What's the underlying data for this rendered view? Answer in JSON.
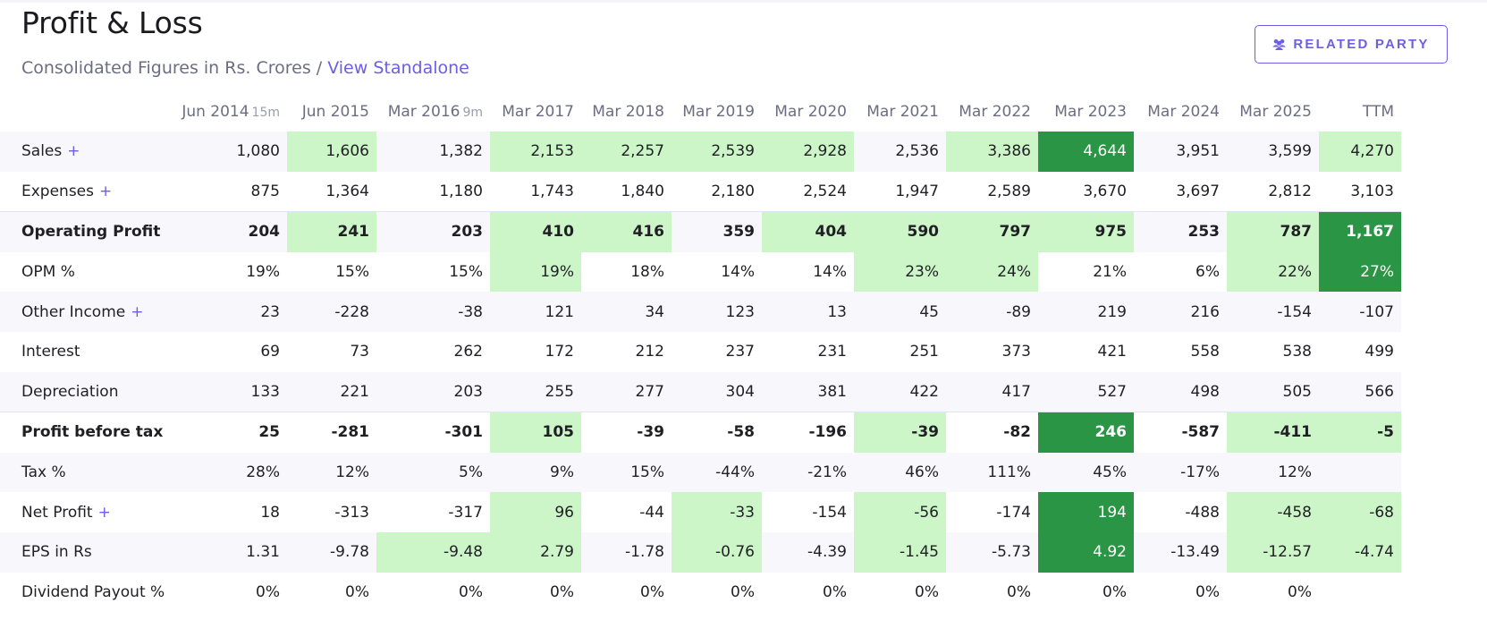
{
  "header": {
    "title": "Profit & Loss",
    "subtitle": "Consolidated Figures in Rs. Crores /",
    "view_link": "View Standalone",
    "related_party_label": "RELATED PARTY"
  },
  "columns": [
    {
      "label": "Jun 2014",
      "sub": "15m"
    },
    {
      "label": "Jun 2015",
      "sub": ""
    },
    {
      "label": "Mar 2016",
      "sub": "9m"
    },
    {
      "label": "Mar 2017",
      "sub": ""
    },
    {
      "label": "Mar 2018",
      "sub": ""
    },
    {
      "label": "Mar 2019",
      "sub": ""
    },
    {
      "label": "Mar 2020",
      "sub": ""
    },
    {
      "label": "Mar 2021",
      "sub": ""
    },
    {
      "label": "Mar 2022",
      "sub": ""
    },
    {
      "label": "Mar 2023",
      "sub": ""
    },
    {
      "label": "Mar 2024",
      "sub": ""
    },
    {
      "label": "Mar 2025",
      "sub": ""
    },
    {
      "label": "TTM",
      "sub": ""
    }
  ],
  "rows": [
    {
      "label": "Sales",
      "expandable": true,
      "bold": false,
      "alt": true,
      "sep": false,
      "values": [
        "1,080",
        "1,606",
        "1,382",
        "2,153",
        "2,257",
        "2,539",
        "2,928",
        "2,536",
        "3,386",
        "4,644",
        "3,951",
        "3,599",
        "4,270"
      ],
      "highlight": [
        "",
        "l",
        "",
        "l",
        "l",
        "l",
        "l",
        "",
        "l",
        "d",
        "",
        "",
        "l"
      ]
    },
    {
      "label": "Expenses",
      "expandable": true,
      "bold": false,
      "alt": false,
      "sep": false,
      "values": [
        "875",
        "1,364",
        "1,180",
        "1,743",
        "1,840",
        "2,180",
        "2,524",
        "1,947",
        "2,589",
        "3,670",
        "3,697",
        "2,812",
        "3,103"
      ],
      "highlight": [
        "",
        "",
        "",
        "",
        "",
        "",
        "",
        "",
        "",
        "",
        "",
        "",
        ""
      ]
    },
    {
      "label": "Operating Profit",
      "expandable": false,
      "bold": true,
      "alt": true,
      "sep": true,
      "values": [
        "204",
        "241",
        "203",
        "410",
        "416",
        "359",
        "404",
        "590",
        "797",
        "975",
        "253",
        "787",
        "1,167"
      ],
      "highlight": [
        "",
        "l",
        "",
        "l",
        "l",
        "",
        "l",
        "l",
        "l",
        "l",
        "",
        "l",
        "d"
      ]
    },
    {
      "label": "OPM %",
      "expandable": false,
      "bold": false,
      "alt": false,
      "sep": false,
      "values": [
        "19%",
        "15%",
        "15%",
        "19%",
        "18%",
        "14%",
        "14%",
        "23%",
        "24%",
        "21%",
        "6%",
        "22%",
        "27%"
      ],
      "highlight": [
        "",
        "",
        "",
        "l",
        "",
        "",
        "",
        "l",
        "l",
        "",
        "",
        "l",
        "d"
      ]
    },
    {
      "label": "Other Income",
      "expandable": true,
      "bold": false,
      "alt": true,
      "sep": false,
      "values": [
        "23",
        "-228",
        "-38",
        "121",
        "34",
        "123",
        "13",
        "45",
        "-89",
        "219",
        "216",
        "-154",
        "-107"
      ],
      "highlight": [
        "",
        "",
        "",
        "",
        "",
        "",
        "",
        "",
        "",
        "",
        "",
        "",
        ""
      ]
    },
    {
      "label": "Interest",
      "expandable": false,
      "bold": false,
      "alt": false,
      "sep": false,
      "values": [
        "69",
        "73",
        "262",
        "172",
        "212",
        "237",
        "231",
        "251",
        "373",
        "421",
        "558",
        "538",
        "499"
      ],
      "highlight": [
        "",
        "",
        "",
        "",
        "",
        "",
        "",
        "",
        "",
        "",
        "",
        "",
        ""
      ]
    },
    {
      "label": "Depreciation",
      "expandable": false,
      "bold": false,
      "alt": true,
      "sep": false,
      "values": [
        "133",
        "221",
        "203",
        "255",
        "277",
        "304",
        "381",
        "422",
        "417",
        "527",
        "498",
        "505",
        "566"
      ],
      "highlight": [
        "",
        "",
        "",
        "",
        "",
        "",
        "",
        "",
        "",
        "",
        "",
        "",
        ""
      ]
    },
    {
      "label": "Profit before tax",
      "expandable": false,
      "bold": true,
      "alt": false,
      "sep": true,
      "values": [
        "25",
        "-281",
        "-301",
        "105",
        "-39",
        "-58",
        "-196",
        "-39",
        "-82",
        "246",
        "-587",
        "-411",
        "-5"
      ],
      "highlight": [
        "",
        "",
        "",
        "l",
        "",
        "",
        "",
        "l",
        "",
        "d",
        "",
        "l",
        "l"
      ]
    },
    {
      "label": "Tax %",
      "expandable": false,
      "bold": false,
      "alt": true,
      "sep": false,
      "values": [
        "28%",
        "12%",
        "5%",
        "9%",
        "15%",
        "-44%",
        "-21%",
        "46%",
        "111%",
        "45%",
        "-17%",
        "12%",
        ""
      ],
      "highlight": [
        "",
        "",
        "",
        "",
        "",
        "",
        "",
        "",
        "",
        "",
        "",
        "",
        ""
      ]
    },
    {
      "label": "Net Profit",
      "expandable": true,
      "bold": false,
      "alt": false,
      "sep": false,
      "values": [
        "18",
        "-313",
        "-317",
        "96",
        "-44",
        "-33",
        "-154",
        "-56",
        "-174",
        "194",
        "-488",
        "-458",
        "-68"
      ],
      "highlight": [
        "",
        "",
        "",
        "l",
        "",
        "l",
        "",
        "l",
        "",
        "d",
        "",
        "l",
        "l"
      ]
    },
    {
      "label": "EPS in Rs",
      "expandable": false,
      "bold": false,
      "alt": true,
      "sep": false,
      "values": [
        "1.31",
        "-9.78",
        "-9.48",
        "2.79",
        "-1.78",
        "-0.76",
        "-4.39",
        "-1.45",
        "-5.73",
        "4.92",
        "-13.49",
        "-12.57",
        "-4.74"
      ],
      "highlight": [
        "",
        "",
        "l",
        "l",
        "",
        "l",
        "",
        "l",
        "",
        "d",
        "",
        "l",
        "l"
      ]
    },
    {
      "label": "Dividend Payout %",
      "expandable": false,
      "bold": false,
      "alt": false,
      "sep": false,
      "values": [
        "0%",
        "0%",
        "0%",
        "0%",
        "0%",
        "0%",
        "0%",
        "0%",
        "0%",
        "0%",
        "0%",
        "0%",
        ""
      ],
      "highlight": [
        "",
        "",
        "",
        "",
        "",
        "",
        "",
        "",
        "",
        "",
        "",
        "",
        ""
      ]
    }
  ],
  "plus_symbol": "+",
  "icons": {
    "related_party": "users-icon"
  },
  "colors": {
    "accent": "#6a5ee6",
    "highlight_light": "#ccf5c8",
    "highlight_dark": "#2a9544"
  }
}
